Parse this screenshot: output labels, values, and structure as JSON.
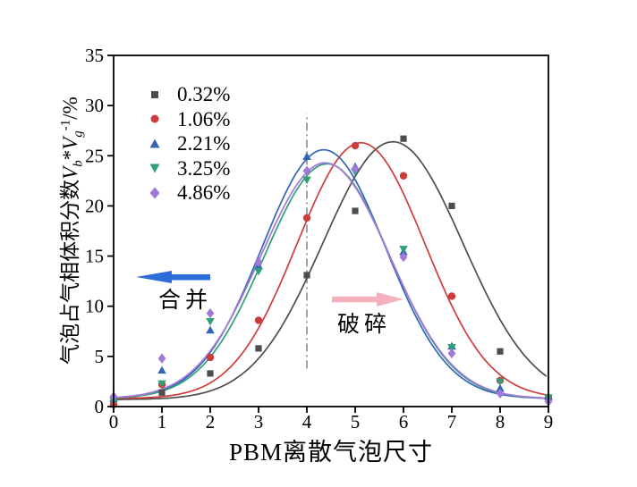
{
  "figure": {
    "background": "#ffffff"
  },
  "annotations": {
    "merge_label": "合并",
    "break_label": "破碎",
    "merge_arrow_color": "#2b6cd9",
    "break_arrow_color": "#f4b0bd",
    "merge_arrow_direction": "left",
    "break_arrow_direction": "right"
  },
  "chart_data": {
    "type": "scatter",
    "title": "",
    "xlabel": "PBM离散气泡尺寸",
    "ylabel": {
      "prefix": "气泡占气相体积分数",
      "v1": "V",
      "sub1": "b",
      "star": "*",
      "v2": "V",
      "sub2": "g",
      "sup2": "-1",
      "unit": "/%"
    },
    "xlim": [
      0,
      9
    ],
    "ylim": [
      0,
      35
    ],
    "x_ticks": [
      0,
      1,
      2,
      3,
      4,
      5,
      6,
      7,
      8,
      9
    ],
    "y_ticks": [
      0,
      5,
      10,
      15,
      20,
      25,
      30,
      35
    ],
    "grid": false,
    "legend_position": "top-left-inside",
    "vline": {
      "x": 4,
      "y_from": 3.8,
      "y_to": 29.2,
      "style": "dash-dot",
      "color": "#8a8a8a"
    },
    "x": [
      0,
      1,
      2,
      3,
      4,
      5,
      6,
      7,
      8,
      9
    ],
    "series": [
      {
        "name": "0.32%",
        "marker": "square",
        "color": "#4d4d4d",
        "fit_curve": {
          "shape": "gaussian",
          "amp": 25.7,
          "mu": 5.78,
          "sigma": 1.45,
          "base": 0.7
        },
        "values": [
          0.3,
          1.4,
          3.3,
          5.8,
          13.1,
          19.5,
          26.7,
          20.0,
          5.5,
          0.8
        ]
      },
      {
        "name": "1.06%",
        "marker": "circle",
        "color": "#cf3b3b",
        "fit_curve": {
          "shape": "gaussian",
          "amp": 25.5,
          "mu": 5.12,
          "sigma": 1.32,
          "base": 0.8
        },
        "values": [
          0.2,
          2.2,
          4.9,
          8.6,
          18.8,
          26.0,
          23.0,
          11.0,
          2.6,
          0.9
        ]
      },
      {
        "name": "2.21%",
        "marker": "triangle-up",
        "color": "#3465b5",
        "fit_curve": {
          "shape": "gaussian",
          "amp": 24.8,
          "mu": 4.35,
          "sigma": 1.28,
          "base": 0.8
        },
        "values": [
          0.8,
          3.6,
          7.6,
          14.0,
          24.9,
          23.9,
          15.4,
          6.0,
          1.8,
          1.0
        ]
      },
      {
        "name": "3.25%",
        "marker": "triangle-down",
        "color": "#2fa076",
        "fit_curve": {
          "shape": "gaussian",
          "amp": 23.4,
          "mu": 4.42,
          "sigma": 1.3,
          "base": 0.8
        },
        "values": [
          0.6,
          2.3,
          8.5,
          13.5,
          22.6,
          23.4,
          15.7,
          5.9,
          2.5,
          0.9
        ]
      },
      {
        "name": "4.86%",
        "marker": "diamond",
        "color": "#a478d8",
        "fit_curve": {
          "shape": "gaussian",
          "amp": 23.5,
          "mu": 4.38,
          "sigma": 1.33,
          "base": 0.8
        },
        "values": [
          1.0,
          4.8,
          9.3,
          14.4,
          23.5,
          23.7,
          14.9,
          5.3,
          1.3,
          0.5
        ]
      }
    ]
  }
}
